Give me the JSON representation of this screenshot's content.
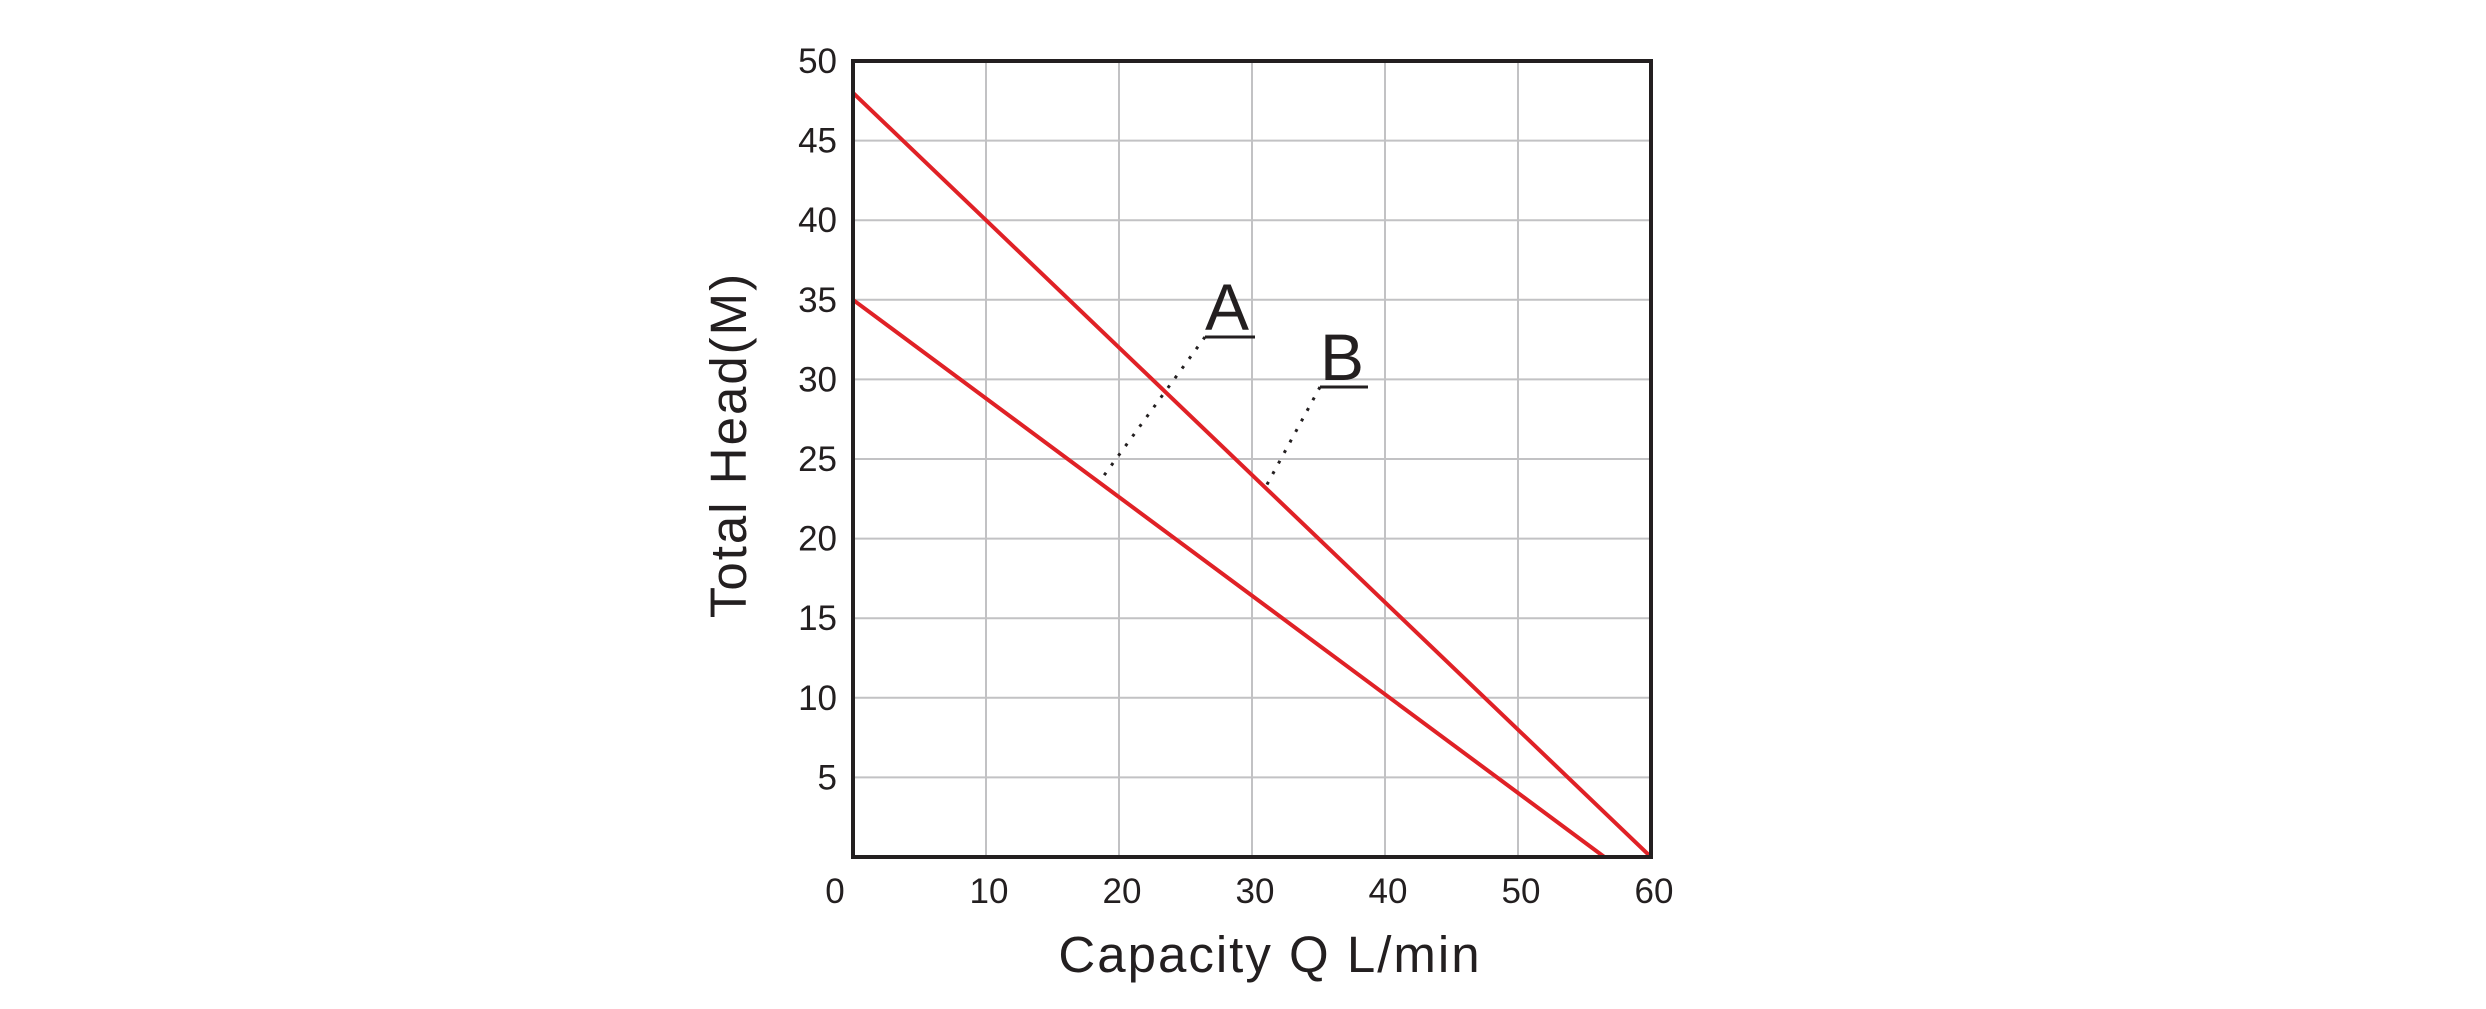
{
  "chart_data": {
    "type": "line",
    "xlabel": "Capacity    Q    L/min",
    "ylabel": "Total  Head(M)",
    "xlim": [
      0,
      60
    ],
    "ylim": [
      0,
      50
    ],
    "x_ticks": [
      "0",
      "10",
      "20",
      "30",
      "40",
      "50",
      "60"
    ],
    "y_ticks": [
      "5",
      "10",
      "15",
      "20",
      "25",
      "30",
      "35",
      "40",
      "45",
      "50"
    ],
    "grid": true,
    "series": [
      {
        "name": "A",
        "x": [
          0,
          56.5
        ],
        "y": [
          35,
          0
        ],
        "color": "#e02126"
      },
      {
        "name": "B",
        "x": [
          0,
          60
        ],
        "y": [
          48,
          0
        ],
        "color": "#e02126"
      }
    ]
  }
}
